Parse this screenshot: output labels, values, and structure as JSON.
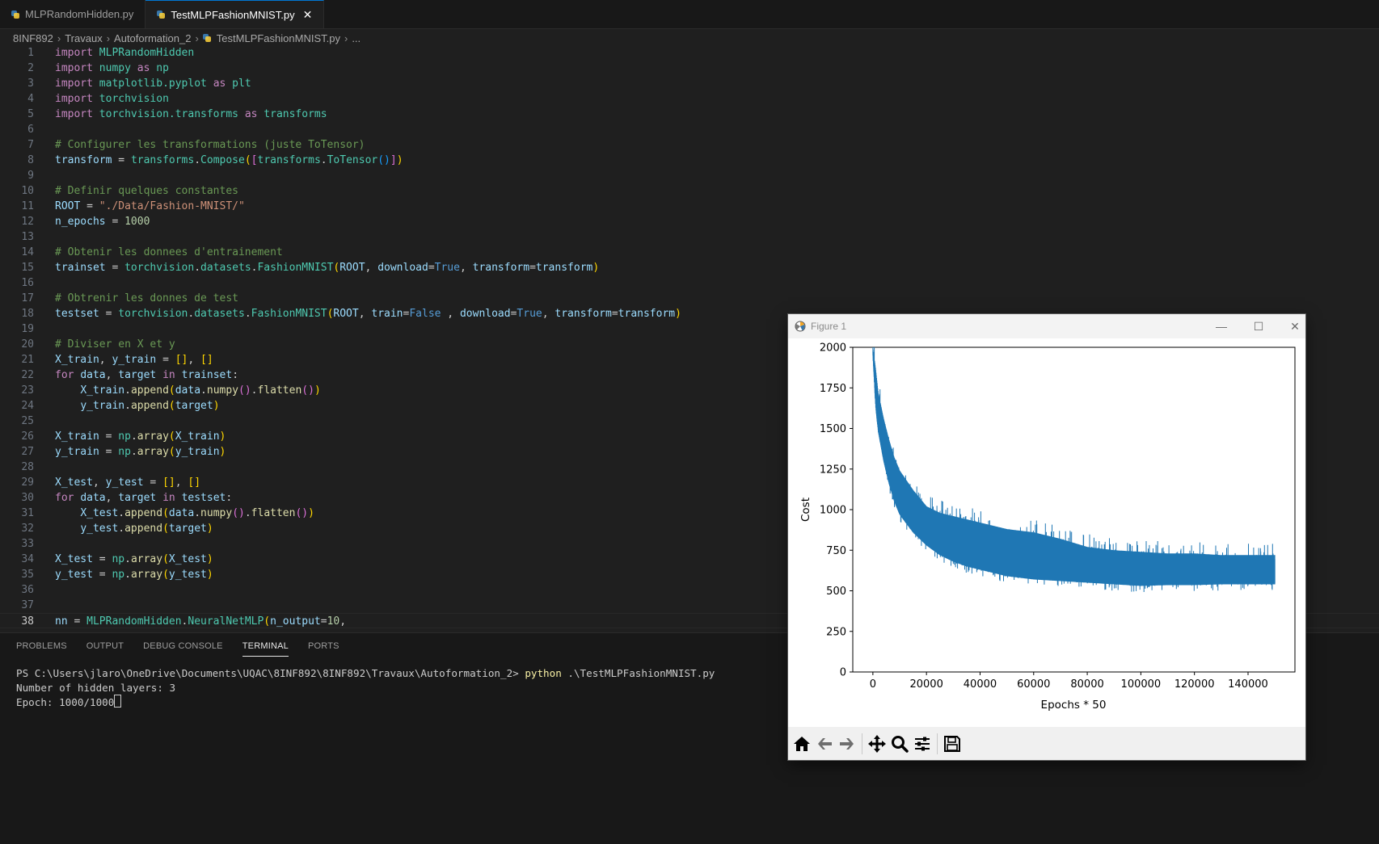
{
  "tabs": [
    {
      "label": "MLPRandomHidden.py",
      "active": false
    },
    {
      "label": "TestMLPFashionMNIST.py",
      "active": true
    }
  ],
  "tab_close_glyph": "✕",
  "breadcrumb": [
    "8INF892",
    "Travaux",
    "Autoformation_2",
    "TestMLPFashionMNIST.py",
    "..."
  ],
  "code_lines": [
    {
      "n": "1",
      "html": "<span class='k'>import</span> <span class='t'>MLPRandomHidden</span>"
    },
    {
      "n": "2",
      "html": "<span class='k'>import</span> <span class='t'>numpy</span> <span class='k'>as</span> <span class='t'>np</span>"
    },
    {
      "n": "3",
      "html": "<span class='k'>import</span> <span class='t'>matplotlib.pyplot</span> <span class='k'>as</span> <span class='t'>plt</span>"
    },
    {
      "n": "4",
      "html": "<span class='k'>import</span> <span class='t'>torchvision</span>"
    },
    {
      "n": "5",
      "html": "<span class='k'>import</span> <span class='t'>torchvision.transforms</span> <span class='k'>as</span> <span class='t'>transforms</span>"
    },
    {
      "n": "6",
      "html": ""
    },
    {
      "n": "7",
      "html": "<span class='c'># Configurer les transformations (juste ToTensor)</span>"
    },
    {
      "n": "8",
      "html": "<span class='v'>transform</span> = <span class='t'>transforms</span>.<span class='t'>Compose</span><span class='p1'>(</span><span class='p2'>[</span><span class='t'>transforms</span>.<span class='t'>ToTensor</span><span class='p3'>()</span><span class='p2'>]</span><span class='p1'>)</span>"
    },
    {
      "n": "9",
      "html": ""
    },
    {
      "n": "10",
      "html": "<span class='c'># Definir quelques constantes</span>"
    },
    {
      "n": "11",
      "html": "<span class='v'>ROOT</span> = <span class='s'>\"./Data/Fashion-MNIST/\"</span>"
    },
    {
      "n": "12",
      "html": "<span class='v'>n_epochs</span> = <span class='n'>1000</span>"
    },
    {
      "n": "13",
      "html": ""
    },
    {
      "n": "14",
      "html": "<span class='c'># Obtenir les donnees d'entrainement</span>"
    },
    {
      "n": "15",
      "html": "<span class='v'>trainset</span> = <span class='t'>torchvision</span>.<span class='t'>datasets</span>.<span class='t'>FashionMNIST</span><span class='p1'>(</span><span class='v'>ROOT</span>, <span class='v'>download</span>=<span class='b'>True</span>, <span class='v'>transform</span>=<span class='v'>transform</span><span class='p1'>)</span>"
    },
    {
      "n": "16",
      "html": ""
    },
    {
      "n": "17",
      "html": "<span class='c'># Obtrenir les donnes de test</span>"
    },
    {
      "n": "18",
      "html": "<span class='v'>testset</span> = <span class='t'>torchvision</span>.<span class='t'>datasets</span>.<span class='t'>FashionMNIST</span><span class='p1'>(</span><span class='v'>ROOT</span>, <span class='v'>train</span>=<span class='b'>False</span> , <span class='v'>download</span>=<span class='b'>True</span>, <span class='v'>transform</span>=<span class='v'>transform</span><span class='p1'>)</span>"
    },
    {
      "n": "19",
      "html": ""
    },
    {
      "n": "20",
      "html": "<span class='c'># Diviser en X et y</span>"
    },
    {
      "n": "21",
      "html": "<span class='v'>X_train</span>, <span class='v'>y_train</span> = <span class='p1'>[]</span>, <span class='p1'>[]</span>"
    },
    {
      "n": "22",
      "html": "<span class='k'>for</span> <span class='v'>data</span>, <span class='v'>target</span> <span class='k'>in</span> <span class='v'>trainset</span>:"
    },
    {
      "n": "23",
      "html": "    <span class='v'>X_train</span>.<span class='f'>append</span><span class='p1'>(</span><span class='v'>data</span>.<span class='f'>numpy</span><span class='p2'>()</span>.<span class='f'>flatten</span><span class='p2'>()</span><span class='p1'>)</span>"
    },
    {
      "n": "24",
      "html": "    <span class='v'>y_train</span>.<span class='f'>append</span><span class='p1'>(</span><span class='v'>target</span><span class='p1'>)</span>"
    },
    {
      "n": "25",
      "html": ""
    },
    {
      "n": "26",
      "html": "<span class='v'>X_train</span> = <span class='t'>np</span>.<span class='f'>array</span><span class='p1'>(</span><span class='v'>X_train</span><span class='p1'>)</span>"
    },
    {
      "n": "27",
      "html": "<span class='v'>y_train</span> = <span class='t'>np</span>.<span class='f'>array</span><span class='p1'>(</span><span class='v'>y_train</span><span class='p1'>)</span>"
    },
    {
      "n": "28",
      "html": ""
    },
    {
      "n": "29",
      "html": "<span class='v'>X_test</span>, <span class='v'>y_test</span> = <span class='p1'>[]</span>, <span class='p1'>[]</span>"
    },
    {
      "n": "30",
      "html": "<span class='k'>for</span> <span class='v'>data</span>, <span class='v'>target</span> <span class='k'>in</span> <span class='v'>testset</span>:"
    },
    {
      "n": "31",
      "html": "    <span class='v'>X_test</span>.<span class='f'>append</span><span class='p1'>(</span><span class='v'>data</span>.<span class='f'>numpy</span><span class='p2'>()</span>.<span class='f'>flatten</span><span class='p2'>()</span><span class='p1'>)</span>"
    },
    {
      "n": "32",
      "html": "    <span class='v'>y_test</span>.<span class='f'>append</span><span class='p1'>(</span><span class='v'>target</span><span class='p1'>)</span>"
    },
    {
      "n": "33",
      "html": ""
    },
    {
      "n": "34",
      "html": "<span class='v'>X_test</span> = <span class='t'>np</span>.<span class='f'>array</span><span class='p1'>(</span><span class='v'>X_test</span><span class='p1'>)</span>"
    },
    {
      "n": "35",
      "html": "<span class='v'>y_test</span> = <span class='t'>np</span>.<span class='f'>array</span><span class='p1'>(</span><span class='v'>y_test</span><span class='p1'>)</span>"
    },
    {
      "n": "36",
      "html": ""
    },
    {
      "n": "37",
      "html": ""
    },
    {
      "n": "38",
      "html": "<span class='v'>nn</span> = <span class='t'>MLPRandomHidden</span>.<span class='t'>NeuralNetMLP</span><span class='p1'>(</span><span class='v'>n_output</span>=<span class='n'>10</span>,"
    }
  ],
  "current_line": "38",
  "panel_tabs": [
    {
      "label": "PROBLEMS",
      "active": false
    },
    {
      "label": "OUTPUT",
      "active": false
    },
    {
      "label": "DEBUG CONSOLE",
      "active": false
    },
    {
      "label": "TERMINAL",
      "active": true
    },
    {
      "label": "PORTS",
      "active": false
    }
  ],
  "terminal": {
    "prompt": "PS C:\\Users\\jlaro\\OneDrive\\Documents\\UQAC\\8INF892\\8INF892\\Travaux\\Autoformation_2> ",
    "command": "python",
    "command_arg": " .\\TestMLPFashionMNIST.py",
    "line2": "Number of hidden layers: 3",
    "line3": "Epoch: 1000/1000"
  },
  "figure_window": {
    "title": "Figure 1",
    "minimize_glyph": "—",
    "maximize_glyph": "☐",
    "close_glyph": "✕",
    "toolbar_icons": [
      "home-icon",
      "back-arrow-icon",
      "forward-arrow-icon",
      "pan-icon",
      "zoom-icon",
      "configure-subplots-icon",
      "save-icon"
    ]
  },
  "chart_data": {
    "type": "line",
    "title": "",
    "xlabel": "Epochs * 50",
    "ylabel": "Cost",
    "xlim": [
      -7500,
      157500
    ],
    "ylim": [
      0,
      2000
    ],
    "x_ticks": [
      "0",
      "20000",
      "40000",
      "60000",
      "80000",
      "100000",
      "120000",
      "140000"
    ],
    "x_tick_values": [
      0,
      20000,
      40000,
      60000,
      80000,
      100000,
      120000,
      140000
    ],
    "y_ticks": [
      "0",
      "250",
      "500",
      "750",
      "1000",
      "1250",
      "1500",
      "1750",
      "2000"
    ],
    "y_tick_values": [
      0,
      250,
      500,
      750,
      1000,
      1250,
      1500,
      1750,
      2000
    ],
    "color": "#1f77b4",
    "series": [
      {
        "x": [
          0,
          1000,
          2000,
          4000,
          6000,
          8000,
          10000,
          15000,
          20000,
          25000,
          30000,
          35000,
          40000,
          50000,
          60000,
          70000,
          80000,
          90000,
          100000,
          110000,
          120000,
          130000,
          140000,
          150000
        ],
        "upper": [
          2000,
          1870,
          1720,
          1560,
          1430,
          1320,
          1240,
          1120,
          1020,
          980,
          960,
          940,
          920,
          880,
          860,
          820,
          770,
          750,
          740,
          730,
          730,
          720,
          720,
          720
        ],
        "lower": [
          1950,
          1640,
          1480,
          1300,
          1160,
          1050,
          970,
          860,
          780,
          720,
          680,
          650,
          630,
          590,
          570,
          560,
          550,
          540,
          530,
          535,
          535,
          540,
          540,
          540
        ]
      }
    ]
  }
}
